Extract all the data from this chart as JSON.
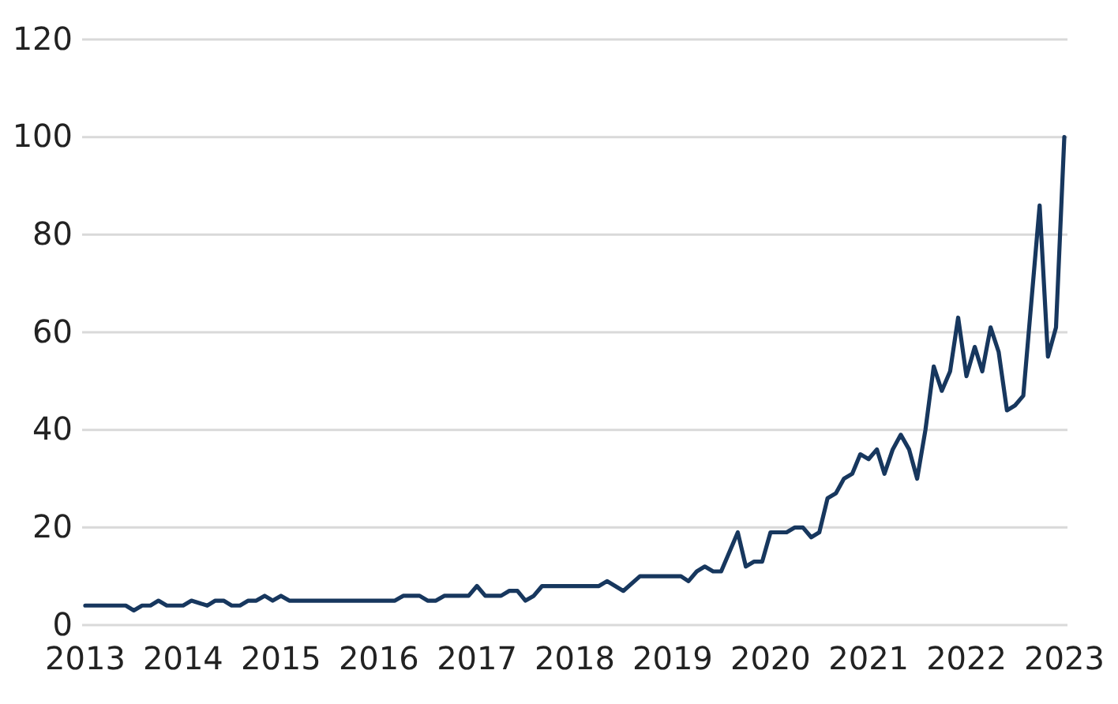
{
  "chart_data": {
    "type": "line",
    "xlim": [
      "2013-01",
      "2023-01"
    ],
    "xticks": [
      {
        "value": "2013-01",
        "label": "2013"
      },
      {
        "value": "2014-01",
        "label": "2014"
      },
      {
        "value": "2015-01",
        "label": "2015"
      },
      {
        "value": "2016-01",
        "label": "2016"
      },
      {
        "value": "2017-01",
        "label": "2017"
      },
      {
        "value": "2018-01",
        "label": "2018"
      },
      {
        "value": "2019-01",
        "label": "2019"
      },
      {
        "value": "2020-01",
        "label": "2020"
      },
      {
        "value": "2021-01",
        "label": "2021"
      },
      {
        "value": "2022-01",
        "label": "2022"
      },
      {
        "value": "2023-01",
        "label": "2023"
      }
    ],
    "ylim": [
      0,
      120
    ],
    "yticks": [
      0,
      20,
      40,
      60,
      80,
      100,
      120
    ],
    "grid": "y",
    "marker": "none",
    "line_style": "solid",
    "x": [
      "2013-01",
      "2013-06",
      "2013-07",
      "2013-08",
      "2013-09",
      "2013-10",
      "2013-11",
      "2014-01",
      "2014-02",
      "2014-04",
      "2014-05",
      "2014-06",
      "2014-07",
      "2014-08",
      "2014-09",
      "2014-10",
      "2014-11",
      "2014-12",
      "2015-01",
      "2015-02",
      "2016-03",
      "2016-04",
      "2016-06",
      "2016-07",
      "2016-08",
      "2016-09",
      "2016-12",
      "2017-01",
      "2017-02",
      "2017-04",
      "2017-05",
      "2017-06",
      "2017-07",
      "2017-08",
      "2017-09",
      "2018-04",
      "2018-05",
      "2018-07",
      "2018-09",
      "2019-02",
      "2019-03",
      "2019-04",
      "2019-05",
      "2019-06",
      "2019-07",
      "2019-09",
      "2019-10",
      "2019-11",
      "2019-12",
      "2020-01",
      "2020-03",
      "2020-04",
      "2020-05",
      "2020-06",
      "2020-07",
      "2020-08",
      "2020-09",
      "2020-10",
      "2020-11",
      "2020-12",
      "2021-01",
      "2021-02",
      "2021-03",
      "2021-04",
      "2021-05",
      "2021-06",
      "2021-07",
      "2021-08",
      "2021-09",
      "2021-10",
      "2021-11",
      "2021-12",
      "2022-01",
      "2022-02",
      "2022-03",
      "2022-04",
      "2022-05",
      "2022-06",
      "2022-07",
      "2022-08",
      "2022-10",
      "2022-11",
      "2022-12",
      "2023-01"
    ],
    "series": [
      {
        "color": "#17375e",
        "values": [
          4,
          4,
          3,
          4,
          4,
          5,
          4,
          4,
          5,
          4,
          5,
          5,
          4,
          4,
          5,
          5,
          6,
          5,
          6,
          5,
          5,
          6,
          6,
          5,
          5,
          6,
          6,
          8,
          6,
          6,
          7,
          7,
          5,
          6,
          8,
          8,
          9,
          7,
          10,
          10,
          9,
          11,
          12,
          11,
          11,
          19,
          12,
          13,
          13,
          19,
          19,
          20,
          20,
          18,
          19,
          26,
          27,
          30,
          31,
          35,
          34,
          36,
          31,
          36,
          39,
          36,
          30,
          40,
          53,
          48,
          52,
          63,
          51,
          57,
          52,
          61,
          56,
          44,
          45,
          47,
          86,
          55,
          61,
          100
        ]
      }
    ]
  }
}
